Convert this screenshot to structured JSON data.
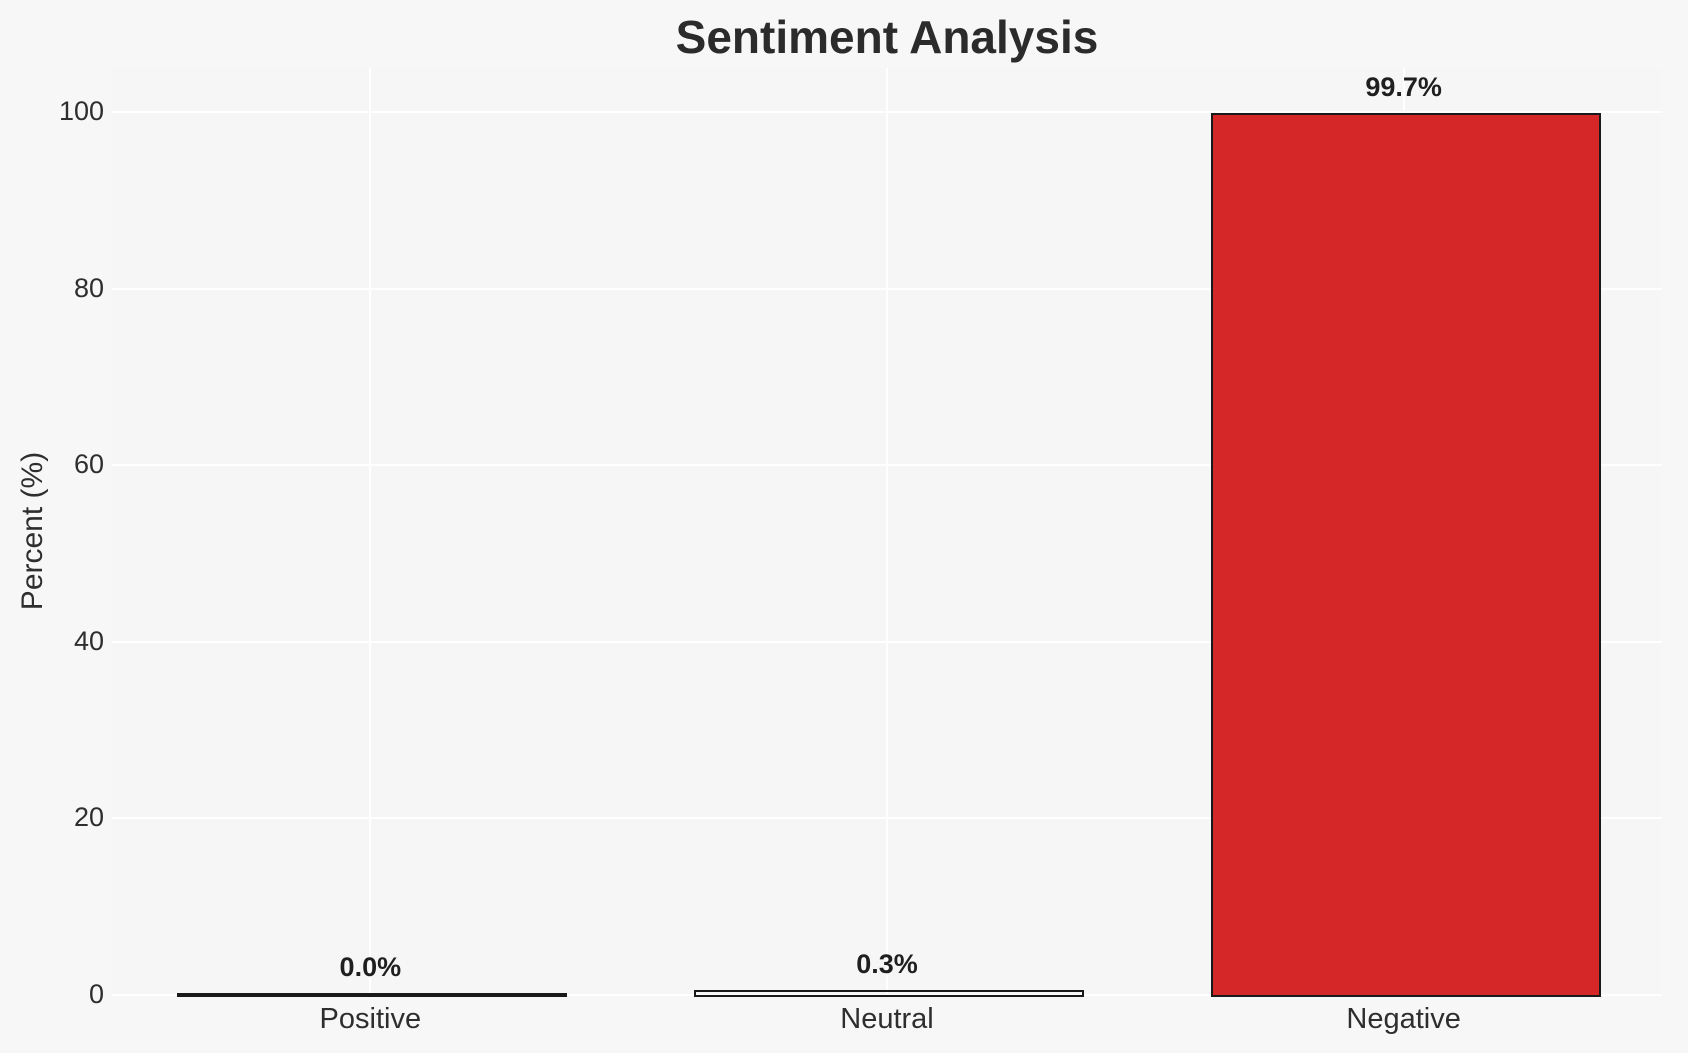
{
  "figure": {
    "background_color": "#f7f7f7",
    "plot_background_color": "#f6f6f6",
    "grid_color": "#ffffff",
    "text_color": "#2e2e2e"
  },
  "chart_data": {
    "type": "bar",
    "title": "Sentiment Analysis",
    "xlabel": "",
    "ylabel": "Percent (%)",
    "categories": [
      "Positive",
      "Neutral",
      "Negative"
    ],
    "values": [
      0.0,
      0.3,
      99.7
    ],
    "bar_value_labels": [
      "0.0%",
      "0.3%",
      "99.7%"
    ],
    "bar_fill_colors": [
      null,
      null,
      "#d62728"
    ],
    "bar_edge_color": "#1a1a1a",
    "yticks": [
      0,
      20,
      40,
      60,
      80,
      100
    ],
    "ylim": [
      0,
      105
    ],
    "grid": true,
    "legend": false
  }
}
